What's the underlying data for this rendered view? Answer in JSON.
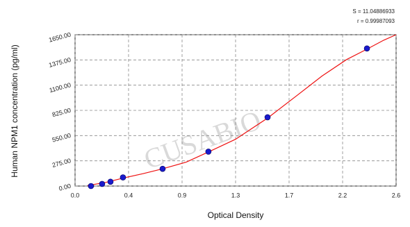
{
  "chart_data": {
    "type": "scatter",
    "stats": [
      "S = 11.04886933",
      "r = 0.99987093"
    ],
    "watermark": "CUSABIO",
    "xlabel": "Optical Density",
    "ylabel": "Human  NPM1 concentration (pg/ml)",
    "xlim": [
      0,
      2.6
    ],
    "ylim": [
      0,
      1650
    ],
    "xticks": [
      {
        "value": 0,
        "label": "0.0"
      },
      {
        "value": 0.4333,
        "label": "0.4"
      },
      {
        "value": 0.8667,
        "label": "0.9"
      },
      {
        "value": 1.3,
        "label": "1.3"
      },
      {
        "value": 1.7333,
        "label": "1.7"
      },
      {
        "value": 2.1667,
        "label": "2.2"
      },
      {
        "value": 2.6,
        "label": "2.6"
      }
    ],
    "yticks": [
      {
        "value": 0,
        "label": "0.00"
      },
      {
        "value": 275,
        "label": "275.00"
      },
      {
        "value": 550,
        "label": "550.00"
      },
      {
        "value": 825,
        "label": "825.00"
      },
      {
        "value": 1100,
        "label": "1100.00"
      },
      {
        "value": 1375,
        "label": "1375.00"
      },
      {
        "value": 1650,
        "label": "1650.00"
      }
    ],
    "grid": true,
    "points": {
      "color": "#1a1acc",
      "x": [
        0.129,
        0.219,
        0.287,
        0.388,
        0.709,
        1.08,
        1.559,
        2.364
      ],
      "values": [
        0,
        23,
        47,
        94,
        188,
        375,
        750,
        1500
      ]
    },
    "curve": {
      "color": "#ee1111",
      "x": [
        0.1,
        0.25,
        0.4,
        0.55,
        0.7,
        0.9,
        1.08,
        1.3,
        1.56,
        1.8,
        2.0,
        2.2,
        2.36,
        2.5,
        2.6
      ],
      "values": [
        5,
        40,
        90,
        135,
        185,
        260,
        372,
        510,
        742,
        990,
        1200,
        1380,
        1490,
        1590,
        1650
      ]
    }
  }
}
